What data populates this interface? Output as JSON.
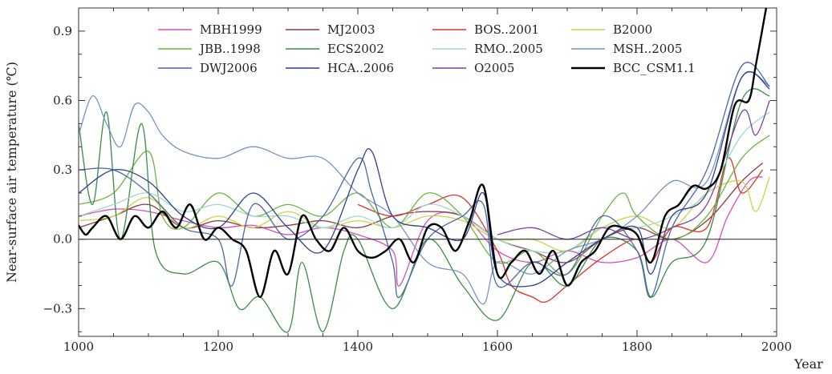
{
  "chart_data": {
    "type": "line",
    "title": "",
    "xlabel": "Year",
    "ylabel": "Near-surface air temperature (℃)",
    "xlim": [
      1000,
      2000
    ],
    "ylim": [
      -0.42,
      1.0
    ],
    "x_ticks": [
      1000,
      1200,
      1400,
      1600,
      1800,
      2000
    ],
    "x_tick_labels": [
      "1000",
      "1200",
      "1400",
      "1600",
      "1800",
      "2000"
    ],
    "y_ticks": [
      -0.3,
      0.0,
      0.3,
      0.6,
      0.9
    ],
    "y_tick_labels": [
      "−0.3",
      "0.0",
      "0.3",
      "0.6",
      "0.9"
    ],
    "zero_line": 0.0,
    "legend_position": "top",
    "series": [
      {
        "name": "MBH1999",
        "color": "#d84fb7",
        "points": [
          [
            1000,
            0.1
          ],
          [
            1050,
            0.13
          ],
          [
            1100,
            0.12
          ],
          [
            1150,
            0.08
          ],
          [
            1200,
            0.05
          ],
          [
            1250,
            0.06
          ],
          [
            1300,
            0.02
          ],
          [
            1350,
            0.05
          ],
          [
            1400,
            0.02
          ],
          [
            1450,
            -0.05
          ],
          [
            1460,
            -0.2
          ],
          [
            1500,
            0.08
          ],
          [
            1550,
            0.1
          ],
          [
            1600,
            -0.05
          ],
          [
            1650,
            -0.1
          ],
          [
            1700,
            -0.05
          ],
          [
            1750,
            -0.1
          ],
          [
            1800,
            -0.08
          ],
          [
            1850,
            0.0
          ],
          [
            1900,
            -0.1
          ],
          [
            1930,
            0.1
          ],
          [
            1960,
            0.25
          ],
          [
            1980,
            0.27
          ]
        ]
      },
      {
        "name": "MJ2003",
        "color": "#8a3b3b",
        "points": [
          [
            1000,
            0.05
          ],
          [
            1050,
            0.1
          ],
          [
            1100,
            0.15
          ],
          [
            1150,
            0.05
          ],
          [
            1200,
            0.08
          ],
          [
            1250,
            0.05
          ],
          [
            1300,
            0.06
          ],
          [
            1350,
            0.08
          ],
          [
            1400,
            0.05
          ],
          [
            1450,
            0.1
          ],
          [
            1500,
            0.12
          ],
          [
            1550,
            0.1
          ],
          [
            1600,
            0.0
          ],
          [
            1650,
            -0.05
          ],
          [
            1700,
            -0.1
          ],
          [
            1750,
            0.0
          ],
          [
            1800,
            0.05
          ],
          [
            1850,
            0.0
          ],
          [
            1900,
            0.08
          ],
          [
            1950,
            0.25
          ],
          [
            1980,
            0.33
          ]
        ]
      },
      {
        "name": "BOS..2001",
        "color": "#d9342b",
        "points": [
          [
            1400,
            0.15
          ],
          [
            1450,
            0.1
          ],
          [
            1500,
            0.15
          ],
          [
            1550,
            0.18
          ],
          [
            1600,
            -0.05
          ],
          [
            1620,
            -0.2
          ],
          [
            1650,
            -0.25
          ],
          [
            1670,
            -0.27
          ],
          [
            1700,
            -0.2
          ],
          [
            1750,
            -0.08
          ],
          [
            1800,
            0.0
          ],
          [
            1820,
            -0.1
          ],
          [
            1850,
            0.05
          ],
          [
            1900,
            0.05
          ],
          [
            1930,
            0.35
          ],
          [
            1950,
            0.2
          ],
          [
            1980,
            0.3
          ]
        ]
      },
      {
        "name": "B2000",
        "color": "#c8d448",
        "points": [
          [
            1000,
            0.08
          ],
          [
            1050,
            0.1
          ],
          [
            1100,
            0.18
          ],
          [
            1150,
            0.05
          ],
          [
            1200,
            0.1
          ],
          [
            1250,
            0.05
          ],
          [
            1300,
            0.12
          ],
          [
            1350,
            0.05
          ],
          [
            1400,
            0.08
          ],
          [
            1450,
            0.05
          ],
          [
            1500,
            0.1
          ],
          [
            1550,
            0.08
          ],
          [
            1600,
            0.0
          ],
          [
            1650,
            0.0
          ],
          [
            1700,
            -0.05
          ],
          [
            1750,
            0.05
          ],
          [
            1800,
            0.1
          ],
          [
            1850,
            0.05
          ],
          [
            1900,
            0.2
          ],
          [
            1950,
            0.25
          ],
          [
            1970,
            0.12
          ],
          [
            1990,
            0.27
          ]
        ]
      },
      {
        "name": "JBB..1998",
        "color": "#6db33f",
        "points": [
          [
            1000,
            0.15
          ],
          [
            1050,
            0.2
          ],
          [
            1100,
            0.38
          ],
          [
            1120,
            0.1
          ],
          [
            1150,
            0.05
          ],
          [
            1200,
            0.2
          ],
          [
            1250,
            0.1
          ],
          [
            1300,
            0.15
          ],
          [
            1350,
            0.1
          ],
          [
            1400,
            0.2
          ],
          [
            1450,
            0.05
          ],
          [
            1500,
            0.2
          ],
          [
            1550,
            0.1
          ],
          [
            1600,
            -0.1
          ],
          [
            1650,
            -0.05
          ],
          [
            1700,
            -0.15
          ],
          [
            1750,
            0.1
          ],
          [
            1780,
            0.2
          ],
          [
            1800,
            0.1
          ],
          [
            1850,
            0.0
          ],
          [
            1900,
            0.1
          ],
          [
            1950,
            0.35
          ],
          [
            1990,
            0.45
          ]
        ]
      },
      {
        "name": "ECS2002",
        "color": "#3a8a4a",
        "points": [
          [
            1000,
            0.5
          ],
          [
            1020,
            0.15
          ],
          [
            1040,
            0.55
          ],
          [
            1060,
            0.0
          ],
          [
            1090,
            0.5
          ],
          [
            1110,
            -0.05
          ],
          [
            1150,
            -0.15
          ],
          [
            1200,
            -0.1
          ],
          [
            1230,
            -0.3
          ],
          [
            1260,
            -0.25
          ],
          [
            1300,
            -0.4
          ],
          [
            1320,
            -0.1
          ],
          [
            1350,
            -0.4
          ],
          [
            1380,
            -0.05
          ],
          [
            1400,
            0.0
          ],
          [
            1450,
            -0.3
          ],
          [
            1500,
            0.0
          ],
          [
            1550,
            -0.2
          ],
          [
            1600,
            -0.35
          ],
          [
            1650,
            -0.1
          ],
          [
            1700,
            -0.2
          ],
          [
            1750,
            0.0
          ],
          [
            1800,
            -0.05
          ],
          [
            1820,
            -0.25
          ],
          [
            1850,
            -0.1
          ],
          [
            1900,
            0.0
          ],
          [
            1950,
            0.6
          ],
          [
            1990,
            0.62
          ]
        ]
      },
      {
        "name": "RMO..2005",
        "color": "#9fd7d0",
        "points": [
          [
            1000,
            0.1
          ],
          [
            1050,
            0.15
          ],
          [
            1100,
            0.2
          ],
          [
            1150,
            0.12
          ],
          [
            1200,
            0.15
          ],
          [
            1250,
            0.1
          ],
          [
            1300,
            0.1
          ],
          [
            1350,
            0.05
          ],
          [
            1400,
            0.1
          ],
          [
            1450,
            0.05
          ],
          [
            1500,
            0.15
          ],
          [
            1550,
            0.1
          ],
          [
            1600,
            0.0
          ],
          [
            1650,
            -0.05
          ],
          [
            1700,
            -0.05
          ],
          [
            1750,
            0.05
          ],
          [
            1800,
            0.05
          ],
          [
            1850,
            0.1
          ],
          [
            1900,
            0.2
          ],
          [
            1950,
            0.45
          ],
          [
            1990,
            0.55
          ]
        ]
      },
      {
        "name": "MSH..2005",
        "color": "#7893c2",
        "points": [
          [
            1000,
            0.45
          ],
          [
            1020,
            0.62
          ],
          [
            1040,
            0.5
          ],
          [
            1060,
            0.4
          ],
          [
            1080,
            0.58
          ],
          [
            1100,
            0.55
          ],
          [
            1120,
            0.45
          ],
          [
            1150,
            0.38
          ],
          [
            1200,
            0.35
          ],
          [
            1250,
            0.4
          ],
          [
            1300,
            0.35
          ],
          [
            1350,
            0.35
          ],
          [
            1400,
            0.2
          ],
          [
            1450,
            0.1
          ],
          [
            1500,
            -0.1
          ],
          [
            1550,
            -0.15
          ],
          [
            1580,
            -0.28
          ],
          [
            1600,
            -0.1
          ],
          [
            1650,
            -0.15
          ],
          [
            1700,
            -0.05
          ],
          [
            1750,
            0.0
          ],
          [
            1800,
            0.1
          ],
          [
            1850,
            0.25
          ],
          [
            1900,
            0.25
          ],
          [
            1950,
            0.7
          ],
          [
            1990,
            0.66
          ]
        ]
      },
      {
        "name": "DWJ2006",
        "color": "#4a66a8",
        "points": [
          [
            1000,
            0.3
          ],
          [
            1050,
            0.3
          ],
          [
            1100,
            0.2
          ],
          [
            1150,
            0.05
          ],
          [
            1200,
            0.0
          ],
          [
            1220,
            -0.2
          ],
          [
            1250,
            0.15
          ],
          [
            1300,
            0.0
          ],
          [
            1350,
            0.1
          ],
          [
            1400,
            0.35
          ],
          [
            1420,
            0.2
          ],
          [
            1450,
            -0.1
          ],
          [
            1460,
            -0.25
          ],
          [
            1500,
            0.0
          ],
          [
            1550,
            0.1
          ],
          [
            1580,
            0.15
          ],
          [
            1600,
            -0.2
          ],
          [
            1650,
            -0.1
          ],
          [
            1700,
            -0.15
          ],
          [
            1750,
            0.1
          ],
          [
            1800,
            -0.05
          ],
          [
            1820,
            -0.25
          ],
          [
            1850,
            0.05
          ],
          [
            1900,
            0.3
          ],
          [
            1950,
            0.75
          ],
          [
            1990,
            0.66
          ]
        ]
      },
      {
        "name": "HCA..2006",
        "color": "#2f3f8f",
        "points": [
          [
            1000,
            0.2
          ],
          [
            1050,
            0.3
          ],
          [
            1100,
            0.25
          ],
          [
            1150,
            0.1
          ],
          [
            1200,
            0.05
          ],
          [
            1250,
            0.2
          ],
          [
            1300,
            0.05
          ],
          [
            1350,
            -0.05
          ],
          [
            1400,
            0.3
          ],
          [
            1420,
            0.38
          ],
          [
            1450,
            0.1
          ],
          [
            1500,
            0.05
          ],
          [
            1550,
            0.0
          ],
          [
            1580,
            0.2
          ],
          [
            1600,
            -0.15
          ],
          [
            1650,
            -0.2
          ],
          [
            1700,
            -0.1
          ],
          [
            1750,
            0.0
          ],
          [
            1800,
            0.05
          ],
          [
            1820,
            -0.15
          ],
          [
            1850,
            0.1
          ],
          [
            1900,
            0.2
          ],
          [
            1950,
            0.7
          ],
          [
            1990,
            0.65
          ]
        ]
      },
      {
        "name": "O2005",
        "color": "#7b3fa0",
        "points": [
          [
            1600,
            0.02
          ],
          [
            1650,
            0.05
          ],
          [
            1700,
            0.0
          ],
          [
            1750,
            0.05
          ],
          [
            1800,
            0.0
          ],
          [
            1850,
            0.05
          ],
          [
            1900,
            0.15
          ],
          [
            1950,
            0.55
          ],
          [
            1970,
            0.45
          ],
          [
            1990,
            0.6
          ]
        ]
      },
      {
        "name": "BCC_CSM1.1",
        "color": "#000000",
        "points": [
          [
            1000,
            0.06
          ],
          [
            1010,
            0.02
          ],
          [
            1020,
            0.05
          ],
          [
            1040,
            0.1
          ],
          [
            1060,
            0.0
          ],
          [
            1080,
            0.1
          ],
          [
            1100,
            0.05
          ],
          [
            1120,
            0.12
          ],
          [
            1140,
            0.05
          ],
          [
            1160,
            0.15
          ],
          [
            1180,
            0.0
          ],
          [
            1200,
            0.05
          ],
          [
            1220,
            0.0
          ],
          [
            1240,
            -0.05
          ],
          [
            1260,
            -0.25
          ],
          [
            1280,
            -0.05
          ],
          [
            1300,
            -0.15
          ],
          [
            1320,
            0.1
          ],
          [
            1340,
            0.0
          ],
          [
            1360,
            -0.05
          ],
          [
            1380,
            0.05
          ],
          [
            1400,
            -0.05
          ],
          [
            1420,
            -0.08
          ],
          [
            1440,
            -0.05
          ],
          [
            1460,
            0.0
          ],
          [
            1480,
            -0.1
          ],
          [
            1500,
            0.05
          ],
          [
            1520,
            0.05
          ],
          [
            1540,
            -0.05
          ],
          [
            1560,
            0.08
          ],
          [
            1580,
            0.23
          ],
          [
            1600,
            -0.15
          ],
          [
            1620,
            -0.1
          ],
          [
            1640,
            -0.05
          ],
          [
            1660,
            -0.15
          ],
          [
            1680,
            -0.05
          ],
          [
            1700,
            -0.2
          ],
          [
            1720,
            -0.1
          ],
          [
            1740,
            -0.05
          ],
          [
            1760,
            0.05
          ],
          [
            1780,
            0.05
          ],
          [
            1800,
            0.02
          ],
          [
            1820,
            -0.1
          ],
          [
            1840,
            0.1
          ],
          [
            1860,
            0.15
          ],
          [
            1880,
            0.23
          ],
          [
            1900,
            0.22
          ],
          [
            1920,
            0.3
          ],
          [
            1940,
            0.58
          ],
          [
            1960,
            0.6
          ],
          [
            1970,
            0.75
          ],
          [
            1985,
            1.0
          ]
        ]
      }
    ]
  }
}
